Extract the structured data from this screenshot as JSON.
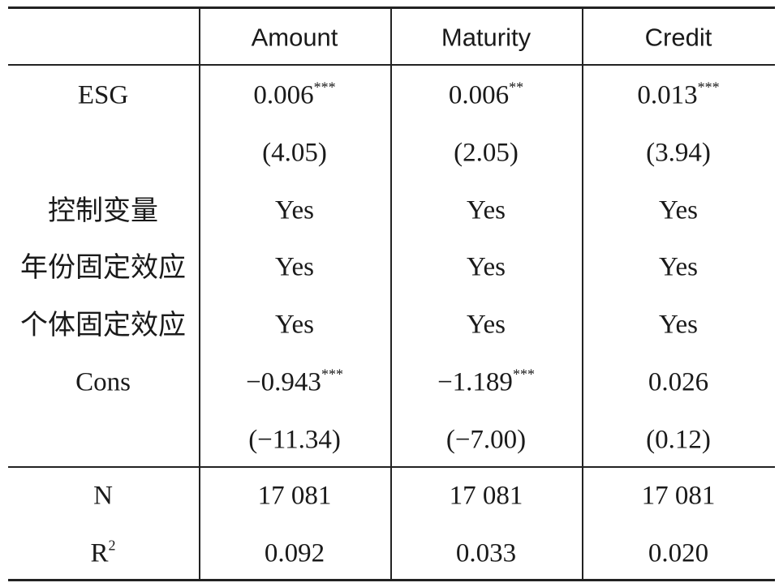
{
  "table": {
    "columns": [
      "Amount",
      "Maturity",
      "Credit"
    ],
    "body": [
      {
        "label": "ESG",
        "cells": [
          {
            "text": "0.006",
            "sup": "***"
          },
          {
            "text": "0.006",
            "sup": "**"
          },
          {
            "text": "0.013",
            "sup": "***"
          }
        ]
      },
      {
        "cells": [
          {
            "text": "(4.05)"
          },
          {
            "text": "(2.05)"
          },
          {
            "text": "(3.94)"
          }
        ]
      },
      {
        "label": "控制变量",
        "cells": [
          {
            "text": "Yes"
          },
          {
            "text": "Yes"
          },
          {
            "text": "Yes"
          }
        ]
      },
      {
        "label": "年份固定效应",
        "cells": [
          {
            "text": "Yes"
          },
          {
            "text": "Yes"
          },
          {
            "text": "Yes"
          }
        ]
      },
      {
        "label": "个体固定效应",
        "cells": [
          {
            "text": "Yes"
          },
          {
            "text": "Yes"
          },
          {
            "text": "Yes"
          }
        ]
      },
      {
        "label": "Cons",
        "cells": [
          {
            "text": "−0.943",
            "sup": "***"
          },
          {
            "text": "−1.189",
            "sup": "***"
          },
          {
            "text": "0.026"
          }
        ]
      },
      {
        "cells": [
          {
            "text": "(−11.34)"
          },
          {
            "text": "(−7.00)"
          },
          {
            "text": "(0.12)"
          }
        ]
      }
    ],
    "stats": [
      {
        "label": "N",
        "cells": [
          {
            "text": "17 081"
          },
          {
            "text": "17 081"
          },
          {
            "text": "17 081"
          }
        ]
      },
      {
        "label": "R",
        "label_sup": "2",
        "cells": [
          {
            "text": "0.092"
          },
          {
            "text": "0.033"
          },
          {
            "text": "0.020"
          }
        ]
      }
    ]
  }
}
